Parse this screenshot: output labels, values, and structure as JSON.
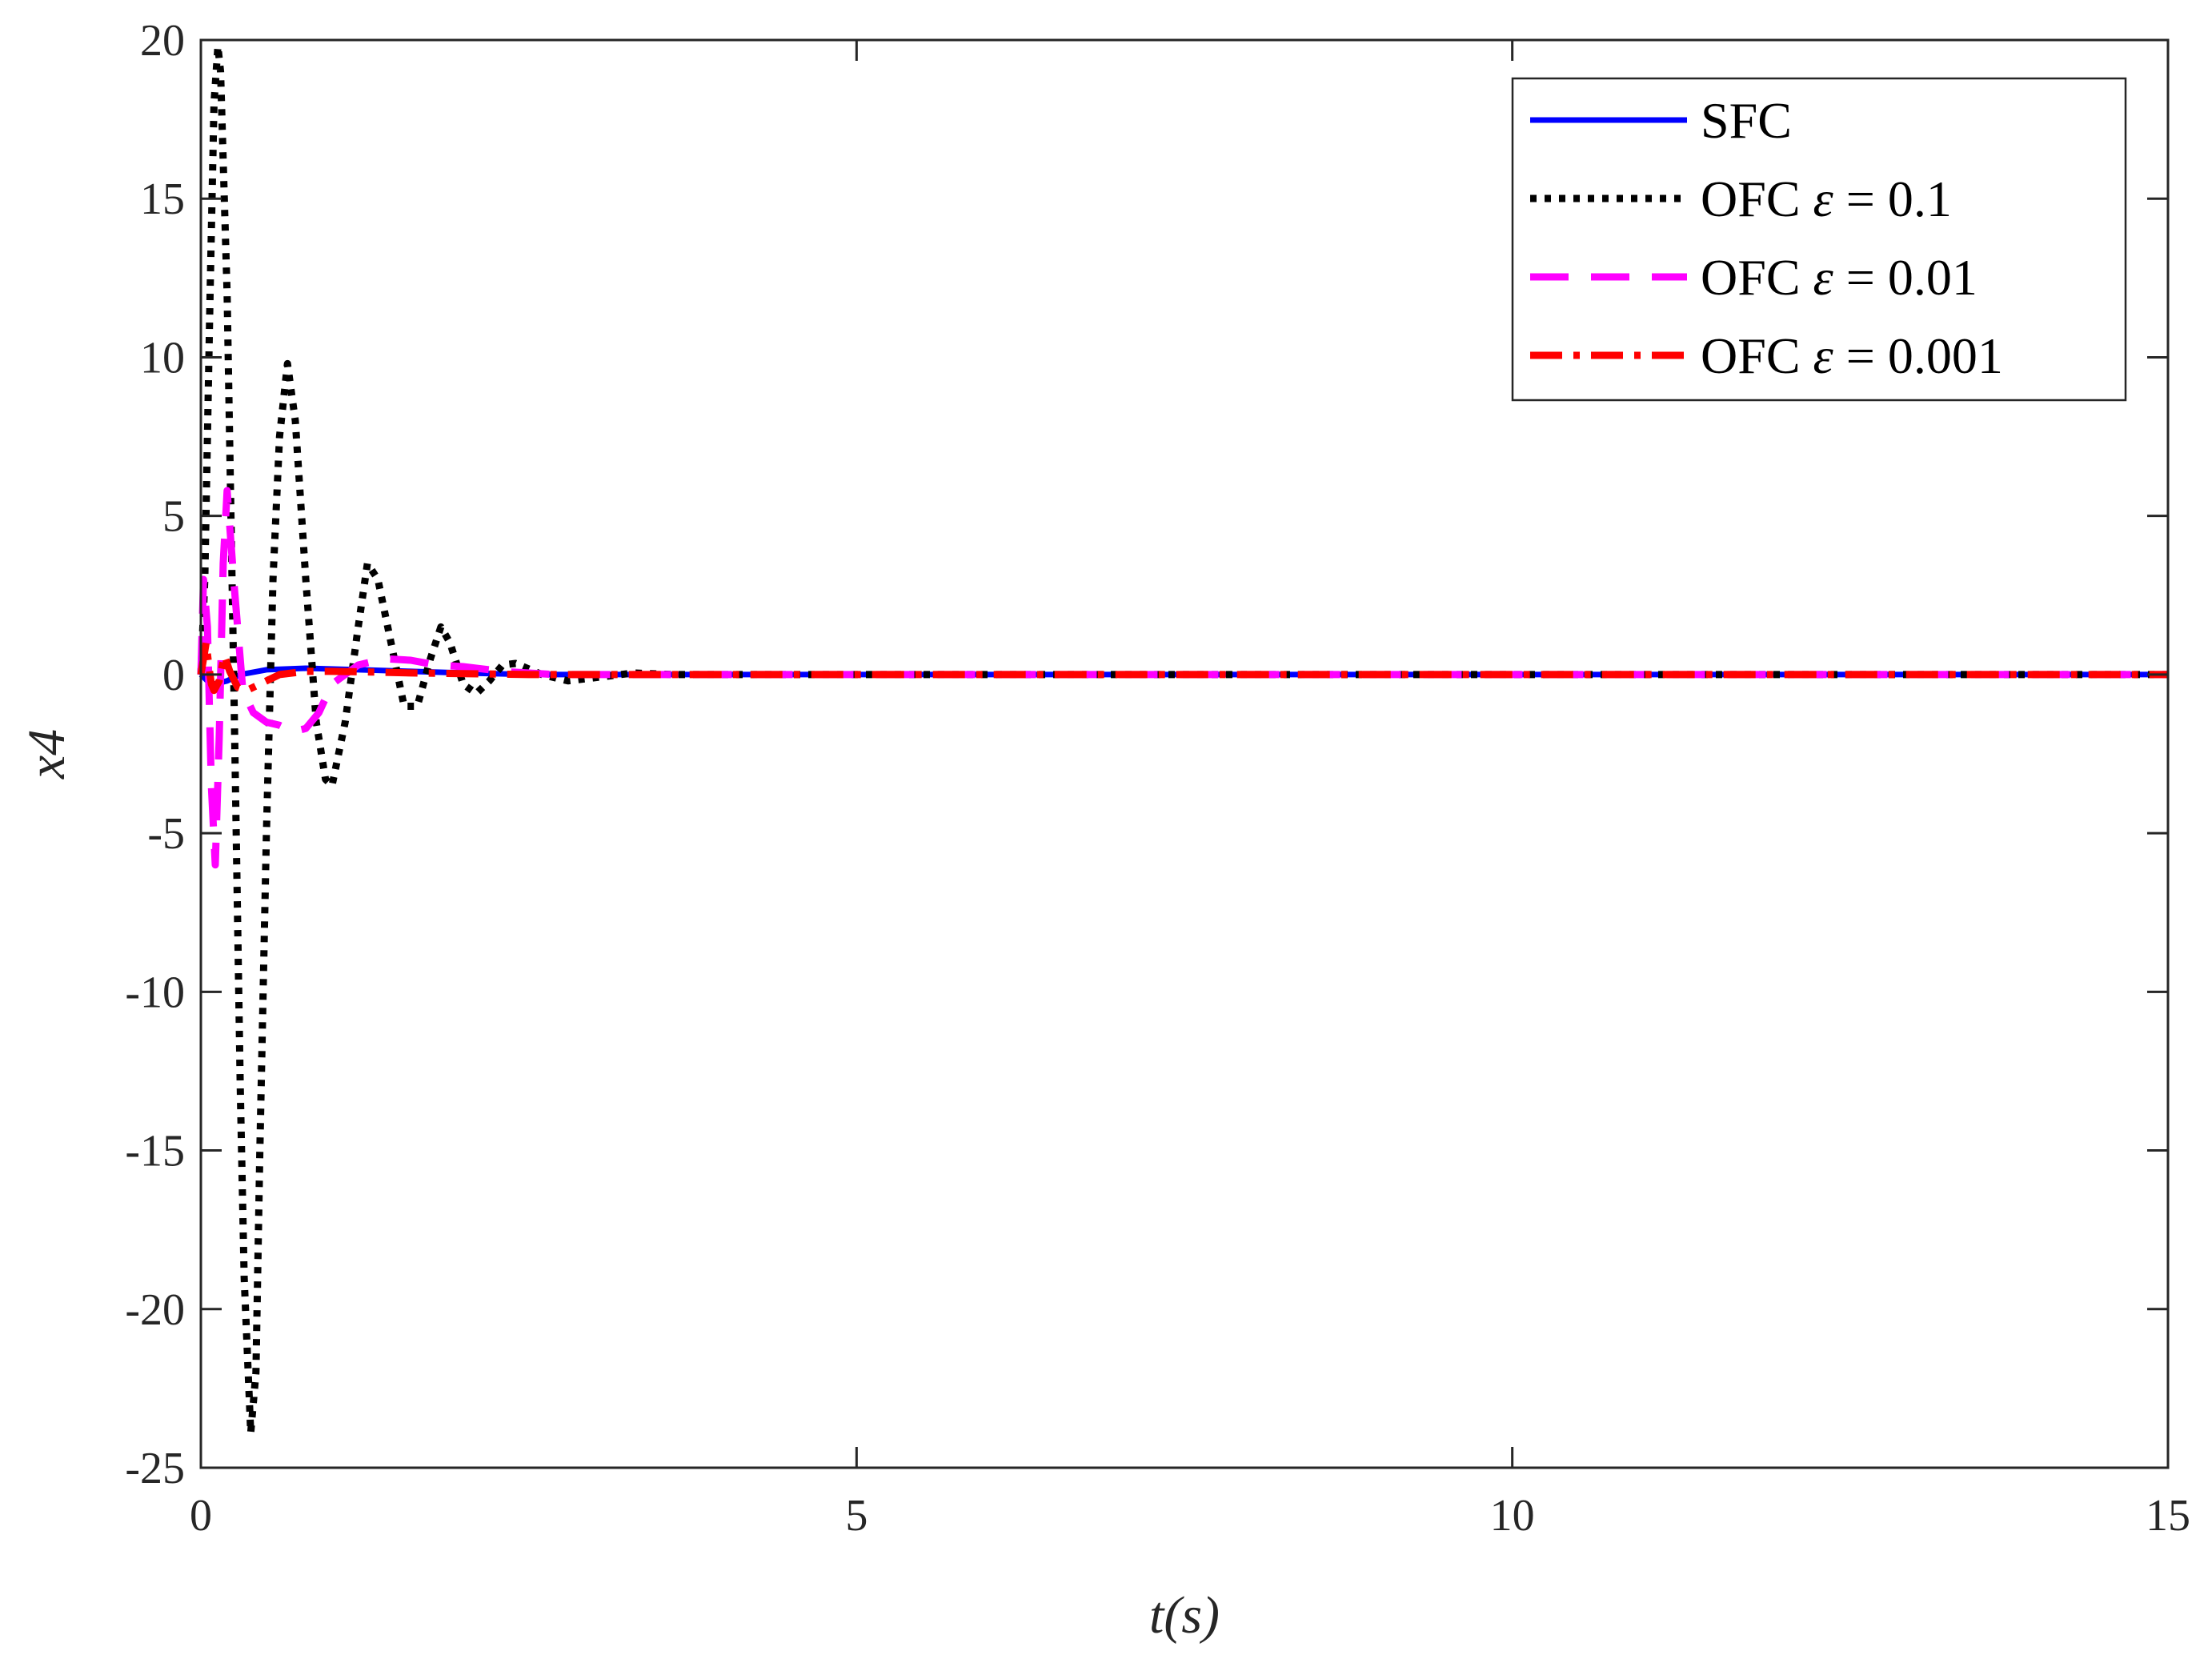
{
  "chart_data": {
    "type": "line",
    "title": "",
    "xlabel": "t(s)",
    "ylabel": "x4",
    "xlim": [
      0,
      15
    ],
    "ylim": [
      -25,
      20
    ],
    "x_ticks": [
      0,
      5,
      10,
      15
    ],
    "y_ticks": [
      20,
      15,
      10,
      5,
      0,
      -5,
      -10,
      -15,
      -20,
      -25
    ],
    "x_tick_labels": [
      "0",
      "5",
      "10",
      "15"
    ],
    "y_tick_labels": [
      "20",
      "15",
      "10",
      "5",
      "0",
      "-5",
      "-10",
      "-15",
      "-20",
      "-25"
    ],
    "grid": false,
    "legend_position": "top-right",
    "series": [
      {
        "name": "SFC",
        "color": "#0000ff",
        "line_style": "solid",
        "x": [
          0,
          0.05,
          0.1,
          0.2,
          0.3,
          0.5,
          0.8,
          1.2,
          1.6,
          2.0,
          2.5,
          3.0,
          15
        ],
        "y": [
          0,
          -0.2,
          -0.3,
          -0.2,
          0.0,
          0.15,
          0.2,
          0.15,
          0.1,
          0.05,
          0.0,
          0.0,
          0.0
        ]
      },
      {
        "name": "OFC ε = 0.1",
        "color": "#000000",
        "line_style": "dotted",
        "x": [
          0,
          0.03,
          0.07,
          0.1,
          0.13,
          0.15,
          0.2,
          0.25,
          0.3,
          0.33,
          0.38,
          0.42,
          0.45,
          0.5,
          0.55,
          0.6,
          0.66,
          0.72,
          0.8,
          0.88,
          0.95,
          1.0,
          1.1,
          1.2,
          1.27,
          1.35,
          1.45,
          1.55,
          1.65,
          1.75,
          1.83,
          1.9,
          2.0,
          2.1,
          2.2,
          2.3,
          2.4,
          2.6,
          2.8,
          3.0,
          3.3,
          3.6,
          4.0,
          15
        ],
        "y": [
          0,
          3.0,
          12.0,
          18.0,
          19.8,
          19.0,
          12.0,
          0.0,
          -13.0,
          -19.0,
          -23.9,
          -22.0,
          -15.0,
          -5.0,
          3.0,
          7.5,
          9.8,
          8.0,
          3.0,
          -1.5,
          -3.3,
          -3.5,
          -1.5,
          1.5,
          3.5,
          3.0,
          1.0,
          -1.0,
          -1.0,
          0.5,
          1.5,
          1.0,
          -0.3,
          -0.6,
          -0.2,
          0.3,
          0.35,
          0.0,
          -0.2,
          -0.1,
          0.05,
          0.0,
          0.0,
          0.0
        ]
      },
      {
        "name": "OFC ε = 0.01",
        "color": "#ff00ff",
        "line_style": "dashed",
        "x": [
          0,
          0.02,
          0.05,
          0.08,
          0.11,
          0.14,
          0.17,
          0.2,
          0.25,
          0.32,
          0.4,
          0.5,
          0.6,
          0.7,
          0.8,
          0.9,
          1.0,
          1.2,
          1.4,
          1.6,
          1.8,
          2.0,
          2.3,
          2.7,
          3.0,
          15
        ],
        "y": [
          0,
          3.0,
          1.5,
          -3.5,
          -6.0,
          -2.0,
          3.5,
          5.8,
          3.0,
          -0.5,
          -1.2,
          -1.5,
          -1.6,
          -1.8,
          -1.7,
          -1.2,
          -0.3,
          0.3,
          0.5,
          0.45,
          0.3,
          0.25,
          0.1,
          0.0,
          0.0,
          0.0
        ]
      },
      {
        "name": "OFC ε = 0.001",
        "color": "#ff0000",
        "line_style": "dashdot",
        "x": [
          0,
          0.02,
          0.04,
          0.06,
          0.08,
          0.1,
          0.14,
          0.18,
          0.22,
          0.28,
          0.35,
          0.45,
          0.6,
          0.8,
          1.0,
          1.3,
          1.6,
          2.0,
          2.5,
          3.0,
          15
        ],
        "y": [
          0,
          0.5,
          1.0,
          0.3,
          -0.3,
          -0.5,
          -0.2,
          0.6,
          0.1,
          -0.4,
          -0.5,
          -0.3,
          0.0,
          0.1,
          0.1,
          0.08,
          0.05,
          0.03,
          0.0,
          0.0,
          0.0
        ]
      }
    ]
  },
  "legend": {
    "items": [
      {
        "label_prefix": "SFC",
        "label_eps": "",
        "label_suffix": ""
      },
      {
        "label_prefix": "OFC ",
        "label_eps": "ε",
        "label_suffix": " = 0.1"
      },
      {
        "label_prefix": "OFC ",
        "label_eps": "ε",
        "label_suffix": " = 0.01"
      },
      {
        "label_prefix": "OFC ",
        "label_eps": "ε",
        "label_suffix": " = 0.001"
      }
    ]
  }
}
